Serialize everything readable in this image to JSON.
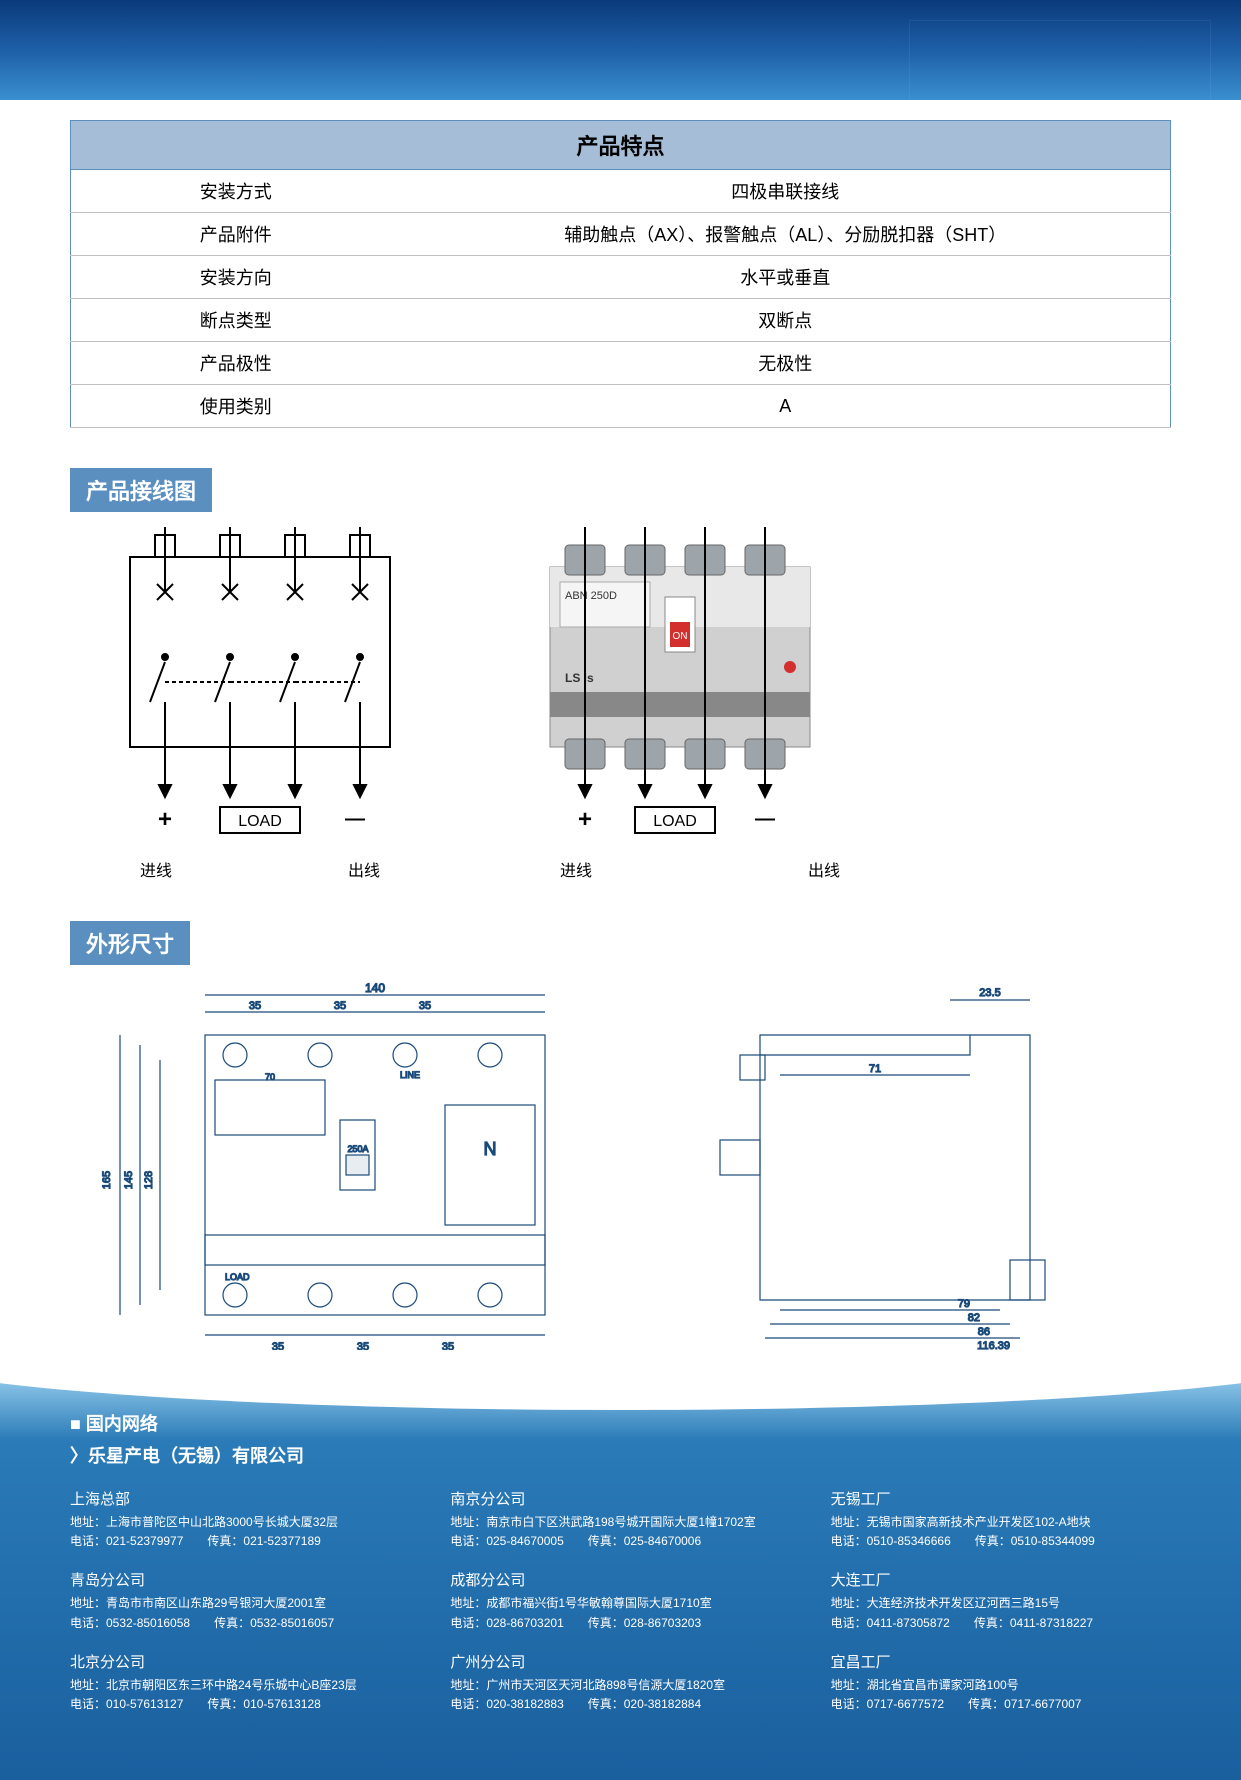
{
  "spec_table": {
    "title": "产品特点",
    "rows": [
      {
        "label": "安装方式",
        "value": "四极串联接线"
      },
      {
        "label": "产品附件",
        "value": "辅助触点（AX）、报警触点（AL）、分励脱扣器（SHT）"
      },
      {
        "label": "安装方向",
        "value": "水平或垂直"
      },
      {
        "label": "断点类型",
        "value": "双断点"
      },
      {
        "label": "产品极性",
        "value": "无极性"
      },
      {
        "label": "使用类别",
        "value": "A"
      }
    ]
  },
  "section_wiring": "产品接线图",
  "section_dims": "外形尺寸",
  "wiring": {
    "load_label": "LOAD",
    "in_label": "进线",
    "out_label": "出线",
    "plus": "+",
    "minus": "—",
    "poles": 4,
    "schematic_color": "#000000",
    "product_label": "ABN 250D",
    "on_label": "ON",
    "brand": "LS is"
  },
  "dimensions": {
    "front": {
      "top_total": 140,
      "pitch": 35,
      "height_a": 165,
      "height_b": 145,
      "height_c": 128,
      "label_side": "70",
      "rating_label": "250A",
      "line_label": "LINE",
      "load_label": "LOAD",
      "n_label": "N"
    },
    "side": {
      "top_offset": 23.5,
      "depth_inner": 71,
      "depth_a": 79,
      "depth_b": 82,
      "depth_c": 86,
      "depth_total": 116.39
    },
    "stroke_color": "#1a4a7a",
    "text_color": "#000000"
  },
  "footer": {
    "heading": "■ 国内网络",
    "subheading": "〉乐星产电（无锡）有限公司",
    "offices": [
      {
        "name": "上海总部",
        "addr": "地址：上海市普陀区中山北路3000号长城大厦32层",
        "tel": "电话：021-52379977",
        "fax": "传真：021-52377189"
      },
      {
        "name": "南京分公司",
        "addr": "地址：南京市白下区洪武路198号城开国际大厦1幢1702室",
        "tel": "电话：025-84670005",
        "fax": "传真：025-84670006"
      },
      {
        "name": "无锡工厂",
        "addr": "地址：无锡市国家高新技术产业开发区102-A地块",
        "tel": "电话：0510-85346666",
        "fax": "传真：0510-85344099"
      },
      {
        "name": "青岛分公司",
        "addr": "地址：青岛市市南区山东路29号银河大厦2001室",
        "tel": "电话：0532-85016058",
        "fax": "传真：0532-85016057"
      },
      {
        "name": "成都分公司",
        "addr": "地址：成都市福兴街1号华敏翰尊国际大厦1710室",
        "tel": "电话：028-86703201",
        "fax": "传真：028-86703203"
      },
      {
        "name": "大连工厂",
        "addr": "地址：大连经济技术开发区辽河西三路15号",
        "tel": "电话：0411-87305872",
        "fax": "传真：0411-87318227"
      },
      {
        "name": "北京分公司",
        "addr": "地址：北京市朝阳区东三环中路24号乐城中心B座23层",
        "tel": "电话：010-57613127",
        "fax": "传真：010-57613128"
      },
      {
        "name": "广州分公司",
        "addr": "地址：广州市天河区天河北路898号信源大厦1820室",
        "tel": "电话：020-38182883",
        "fax": "传真：020-38182884"
      },
      {
        "name": "宜昌工厂",
        "addr": "地址：湖北省宜昌市谭家河路100号",
        "tel": "电话：0717-6677572",
        "fax": "传真：0717-6677007"
      }
    ]
  }
}
